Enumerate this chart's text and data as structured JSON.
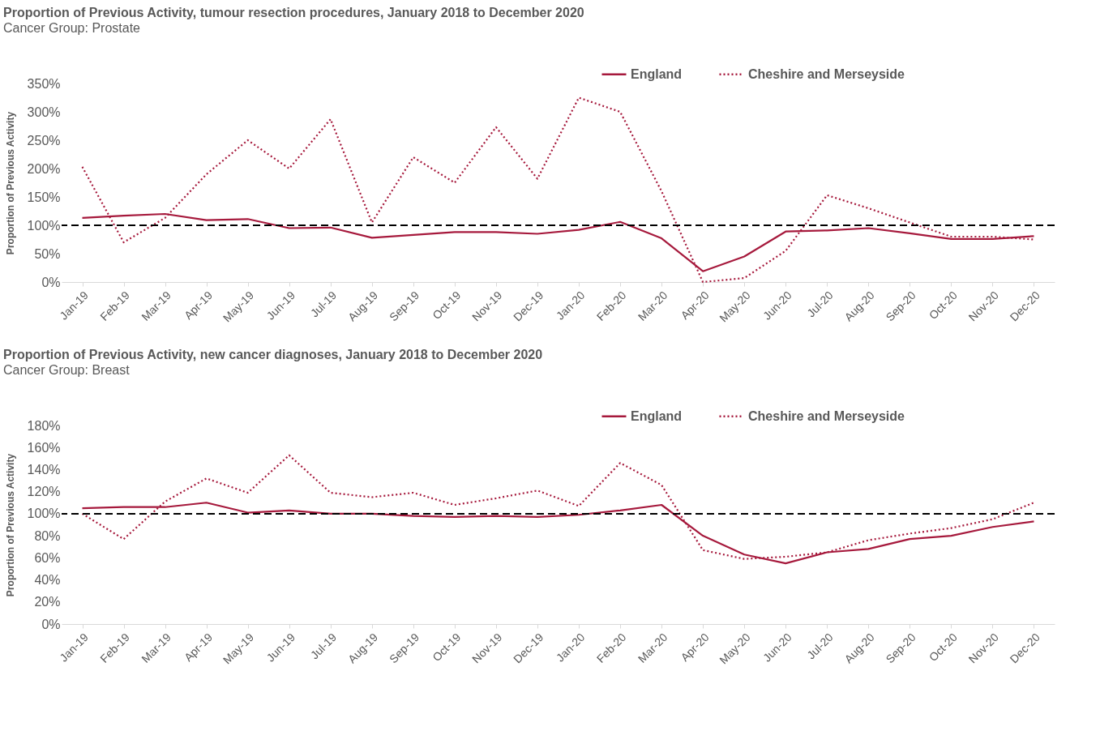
{
  "chart_data": [
    {
      "type": "line",
      "title": "Proportion of Previous Activity, tumour resection procedures, January 2018 to December 2020",
      "subtitle": "Cancer Group: Prostate",
      "ylabel": "Proportion of Previous Activity",
      "categories": [
        "Jan-19",
        "Feb-19",
        "Mar-19",
        "Apr-19",
        "May-19",
        "Jun-19",
        "Jul-19",
        "Aug-19",
        "Sep-19",
        "Oct-19",
        "Nov-19",
        "Dec-19",
        "Jan-20",
        "Feb-20",
        "Mar-20",
        "Apr-20",
        "May-20",
        "Jun-20",
        "Jul-20",
        "Aug-20",
        "Sep-20",
        "Oct-20",
        "Nov-20",
        "Dec-20"
      ],
      "series": [
        {
          "name": "England",
          "color": "#a6193c",
          "line_style": "solid",
          "values": [
            113,
            117,
            120,
            109,
            111,
            95,
            96,
            78,
            83,
            88,
            88,
            85,
            92,
            106,
            77,
            19,
            45,
            89,
            91,
            95,
            86,
            76,
            76,
            81
          ]
        },
        {
          "name": "Cheshire and Merseyside",
          "color": "#a6193c",
          "line_style": "dotted",
          "values": [
            203,
            70,
            113,
            190,
            250,
            200,
            287,
            105,
            220,
            175,
            273,
            182,
            325,
            300,
            160,
            0,
            7,
            55,
            153,
            130,
            105,
            80,
            80,
            75
          ]
        }
      ],
      "ylim": [
        0,
        350
      ],
      "yticks": [
        {
          "value": 0,
          "label": "0%"
        },
        {
          "value": 50,
          "label": "50%"
        },
        {
          "value": 100,
          "label": "100%"
        },
        {
          "value": 150,
          "label": "150%"
        },
        {
          "value": 200,
          "label": "200%"
        },
        {
          "value": 250,
          "label": "250%"
        },
        {
          "value": 300,
          "label": "300%"
        },
        {
          "value": 350,
          "label": "350%"
        }
      ],
      "ref_lines": [
        {
          "axis": "y",
          "value": 100,
          "label": null,
          "color": "#000000",
          "line_style": "dashed"
        }
      ],
      "grid": false,
      "legend": "top right"
    },
    {
      "type": "line",
      "title": "Proportion of Previous Activity, new cancer diagnoses, January 2018 to December 2020",
      "subtitle": "Cancer Group: Breast",
      "ylabel": "Proportion of Previous Activity",
      "categories": [
        "Jan-19",
        "Feb-19",
        "Mar-19",
        "Apr-19",
        "May-19",
        "Jun-19",
        "Jul-19",
        "Aug-19",
        "Sep-19",
        "Oct-19",
        "Nov-19",
        "Dec-19",
        "Jan-20",
        "Feb-20",
        "Mar-20",
        "Apr-20",
        "May-20",
        "Jun-20",
        "Jul-20",
        "Aug-20",
        "Sep-20",
        "Oct-20",
        "Nov-20",
        "Dec-20"
      ],
      "series": [
        {
          "name": "England",
          "color": "#a6193c",
          "line_style": "solid",
          "values": [
            105,
            106,
            106,
            110,
            101,
            103,
            100,
            100,
            98,
            97,
            98,
            97,
            99,
            103,
            108,
            80,
            63,
            55,
            65,
            68,
            77,
            80,
            88,
            93
          ]
        },
        {
          "name": "Cheshire and Merseyside",
          "color": "#a6193c",
          "line_style": "dotted",
          "values": [
            100,
            77,
            111,
            132,
            119,
            153,
            119,
            115,
            119,
            108,
            114,
            121,
            107,
            146,
            126,
            67,
            59,
            61,
            65,
            76,
            82,
            87,
            95,
            110
          ]
        }
      ],
      "ylim": [
        0,
        180
      ],
      "yticks": [
        {
          "value": 0,
          "label": "0%"
        },
        {
          "value": 20,
          "label": "20%"
        },
        {
          "value": 40,
          "label": "40%"
        },
        {
          "value": 60,
          "label": "60%"
        },
        {
          "value": 80,
          "label": "80%"
        },
        {
          "value": 100,
          "label": "100%"
        },
        {
          "value": 120,
          "label": "120%"
        },
        {
          "value": 140,
          "label": "140%"
        },
        {
          "value": 160,
          "label": "160%"
        },
        {
          "value": 180,
          "label": "180%"
        }
      ],
      "ref_lines": [
        {
          "axis": "y",
          "value": 100,
          "label": null,
          "color": "#000000",
          "line_style": "dashed"
        }
      ],
      "grid": false,
      "legend": "top right"
    }
  ]
}
